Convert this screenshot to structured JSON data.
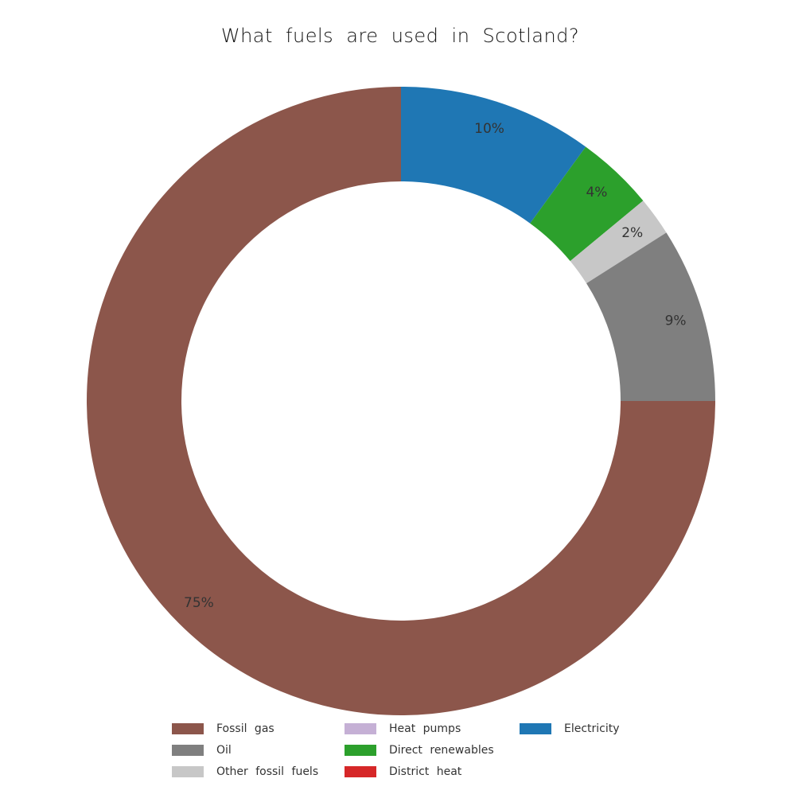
{
  "chart_data": {
    "type": "pie",
    "variant": "donut",
    "title": "What fuels are used in Scotland?",
    "start_angle_deg": 0,
    "direction": "clockwise",
    "series": [
      {
        "name": "Electricity",
        "value": 10,
        "label": "10%",
        "color": "#1f77b4"
      },
      {
        "name": "Direct renewables",
        "value": 4,
        "label": "4%",
        "color": "#2ca02c"
      },
      {
        "name": "Other fossil fuels",
        "value": 2,
        "label": "2%",
        "color": "#c7c7c7"
      },
      {
        "name": "Oil",
        "value": 9,
        "label": "9%",
        "color": "#7f7f7f"
      },
      {
        "name": "Fossil gas",
        "value": 75,
        "label": "75%",
        "color": "#8c564b"
      }
    ],
    "legend": {
      "placement": "bottom",
      "entries": [
        {
          "label": "Fossil gas",
          "color": "#8c564b"
        },
        {
          "label": "Oil",
          "color": "#7f7f7f"
        },
        {
          "label": "Other fossil fuels",
          "color": "#c7c7c7"
        },
        {
          "label": "Heat pumps",
          "color": "#c5b0d5"
        },
        {
          "label": "Direct renewables",
          "color": "#2ca02c"
        },
        {
          "label": "District heat",
          "color": "#d62728"
        },
        {
          "label": "Electricity",
          "color": "#1f77b4"
        }
      ]
    }
  }
}
